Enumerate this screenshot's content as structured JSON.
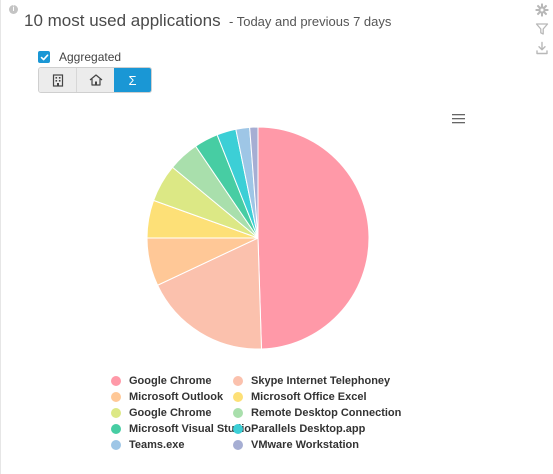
{
  "widget": {
    "title": "10 most used applications",
    "subtitle": "- Today and previous 7 days",
    "aggregated_label": "Aggregated",
    "aggregated_checked": true,
    "view_buttons": [
      {
        "icon": "building-icon",
        "active": false
      },
      {
        "icon": "house-icon",
        "active": false
      },
      {
        "icon": "sigma-icon",
        "label": "Σ",
        "active": true
      }
    ],
    "toolbar_icons": [
      "gear-icon",
      "filter-icon",
      "download-icon"
    ]
  },
  "chart_data": {
    "type": "pie",
    "start_angle": 0,
    "slices": [
      {
        "label": "Google Chrome",
        "value": 49.5,
        "color": "#ff99a8"
      },
      {
        "label": "Skype Internet Telephoney",
        "value": 18.5,
        "color": "#fbc1ad"
      },
      {
        "label": "Microsoft Outlook",
        "value": 7.0,
        "color": "#ffc897"
      },
      {
        "label": "Microsoft Office Excel",
        "value": 5.5,
        "color": "#fde077"
      },
      {
        "label": "Google Chrome",
        "value": 5.5,
        "color": "#dce885"
      },
      {
        "label": "Remote Desktop Connection",
        "value": 4.5,
        "color": "#a9dfac"
      },
      {
        "label": "Microsoft Visual Studio",
        "value": 3.5,
        "color": "#47cda3"
      },
      {
        "label": "Parallels Desktop.app",
        "value": 2.8,
        "color": "#3ccfd6"
      },
      {
        "label": "Teams.exe",
        "value": 2.0,
        "color": "#9ec6e6"
      },
      {
        "label": "VMware Workstation",
        "value": 1.2,
        "color": "#a6aed3"
      }
    ]
  }
}
